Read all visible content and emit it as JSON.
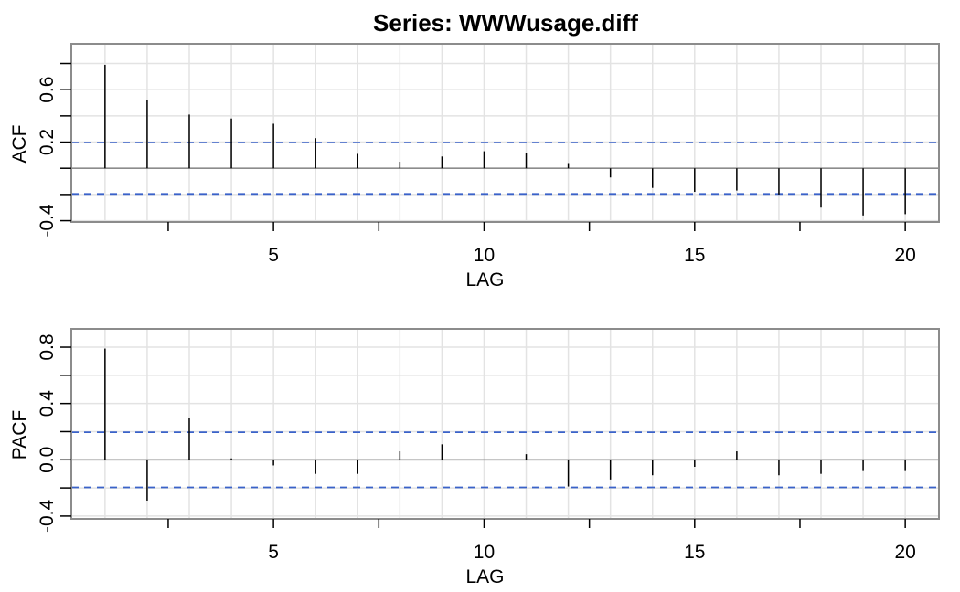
{
  "title": "Series:  WWWusage.diff",
  "colors": {
    "grid": "#e3e3e3",
    "frame": "#8c8c8c",
    "spike": "#000000",
    "ci_line": "#3a62c9"
  },
  "chart_data": [
    {
      "type": "bar",
      "style": "acf-spikes",
      "xlabel": "LAG",
      "ylabel": "ACF",
      "xlim": [
        0.2,
        20.8
      ],
      "ylim": [
        -0.41,
        0.95
      ],
      "x_ticks": [
        5,
        10,
        15,
        20
      ],
      "y_ticks": [
        "0.6",
        "0.2",
        "-0.4"
      ],
      "y_tick_values": [
        0.6,
        0.2,
        -0.4
      ],
      "y_minor_ticks": [
        -0.2,
        0.0,
        0.4,
        0.8
      ],
      "ci": 0.196,
      "lags": [
        1,
        2,
        3,
        4,
        5,
        6,
        7,
        8,
        9,
        10,
        11,
        12,
        13,
        14,
        15,
        16,
        17,
        18,
        19,
        20
      ],
      "values": [
        0.79,
        0.52,
        0.41,
        0.38,
        0.34,
        0.23,
        0.11,
        0.05,
        0.09,
        0.13,
        0.12,
        0.04,
        -0.07,
        -0.15,
        -0.18,
        -0.17,
        -0.2,
        -0.3,
        -0.36,
        -0.35
      ]
    },
    {
      "type": "bar",
      "style": "acf-spikes",
      "xlabel": "LAG",
      "ylabel": "PACF",
      "xlim": [
        0.2,
        20.8
      ],
      "ylim": [
        -0.42,
        0.93
      ],
      "x_ticks": [
        5,
        10,
        15,
        20
      ],
      "y_ticks": [
        "0.8",
        "0.4",
        "0.0",
        "-0.4"
      ],
      "y_tick_values": [
        0.8,
        0.4,
        0.0,
        -0.4
      ],
      "y_minor_ticks": [
        -0.2,
        0.2,
        0.6
      ],
      "ci": 0.196,
      "lags": [
        1,
        2,
        3,
        4,
        5,
        6,
        7,
        8,
        9,
        10,
        11,
        12,
        13,
        14,
        15,
        16,
        17,
        18,
        19,
        20
      ],
      "values": [
        0.79,
        -0.29,
        0.3,
        0.01,
        -0.04,
        -0.1,
        -0.1,
        0.06,
        0.11,
        0.0,
        0.04,
        -0.19,
        -0.14,
        -0.11,
        -0.05,
        0.06,
        -0.11,
        -0.1,
        -0.08,
        -0.08
      ]
    }
  ]
}
